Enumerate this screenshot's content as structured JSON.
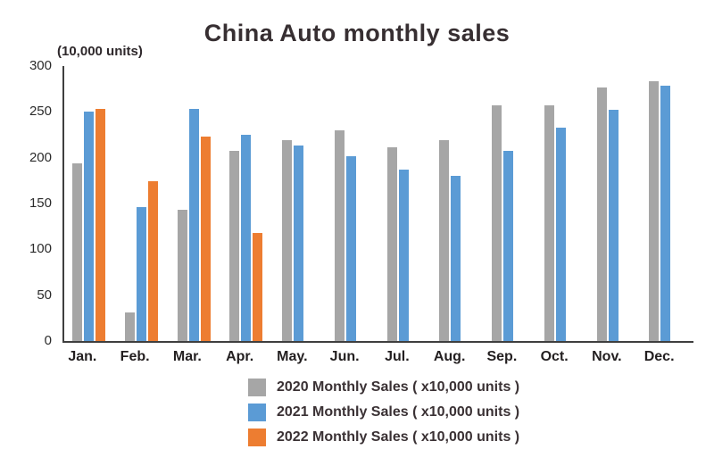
{
  "chart_data": {
    "type": "bar",
    "title": "China Auto monthly sales",
    "y_axis_unit_label": "(10,000 units)",
    "categories": [
      "Jan.",
      "Feb.",
      "Mar.",
      "Apr.",
      "May.",
      "Jun.",
      "Jul.",
      "Aug.",
      "Sep.",
      "Oct.",
      "Nov.",
      "Dec."
    ],
    "series": [
      {
        "key": "2020",
        "label": "2020 Monthly Sales ( x10,000 units )",
        "color": "#A6A6A6",
        "values": [
          194,
          31,
          143,
          207,
          219,
          230,
          211,
          219,
          257,
          257,
          277,
          283
        ]
      },
      {
        "key": "2021",
        "label": "2021 Monthly Sales ( x10,000 units )",
        "color": "#5B9BD5",
        "values": [
          250,
          146,
          253,
          225,
          213,
          202,
          187,
          180,
          207,
          233,
          252,
          279
        ]
      },
      {
        "key": "2022",
        "label": "2022 Monthly Sales ( x10,000 units )",
        "color": "#ED7D31",
        "values": [
          253,
          174,
          223,
          118,
          null,
          null,
          null,
          null,
          null,
          null,
          null,
          null
        ]
      }
    ],
    "ylim": [
      0,
      300
    ],
    "yticks": [
      0,
      50,
      100,
      150,
      200,
      250,
      300
    ],
    "grid": false,
    "legend_position": "bottom"
  }
}
